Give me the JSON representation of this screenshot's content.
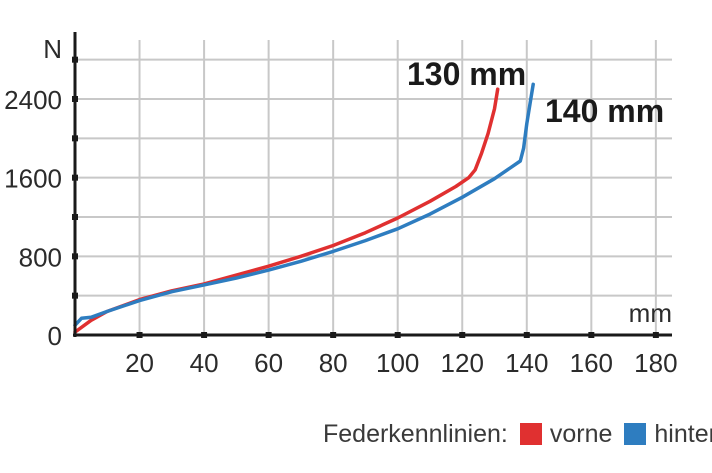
{
  "chart_data": {
    "type": "line",
    "xlabel": "mm",
    "ylabel": "N",
    "xlim": [
      0,
      185
    ],
    "ylim": [
      0,
      3000
    ],
    "x_ticks": [
      20,
      40,
      60,
      80,
      100,
      120,
      140,
      160,
      180
    ],
    "y_ticks": [
      0,
      800,
      1600,
      2400
    ],
    "grid": true,
    "legend": {
      "title": "Federkennlinien:",
      "placement": "bottom-right"
    },
    "series": [
      {
        "name": "vorne",
        "color": "#e03030",
        "annotation": "130 mm",
        "x": [
          0,
          5,
          10,
          20,
          30,
          40,
          50,
          60,
          70,
          80,
          90,
          100,
          110,
          118,
          122,
          124,
          126,
          128,
          130,
          131
        ],
        "y": [
          30,
          150,
          240,
          360,
          450,
          520,
          610,
          700,
          800,
          910,
          1040,
          1190,
          1360,
          1510,
          1600,
          1680,
          1850,
          2050,
          2300,
          2500
        ]
      },
      {
        "name": "hinten",
        "color": "#2e7dc0",
        "annotation": "140 mm",
        "x": [
          0,
          2,
          5,
          10,
          20,
          30,
          40,
          50,
          60,
          70,
          80,
          90,
          100,
          110,
          120,
          130,
          138,
          139,
          140,
          141,
          142
        ],
        "y": [
          100,
          170,
          180,
          240,
          350,
          440,
          510,
          580,
          660,
          750,
          850,
          960,
          1080,
          1230,
          1400,
          1590,
          1770,
          1900,
          2150,
          2350,
          2550
        ]
      }
    ]
  },
  "colors": {
    "axis": "#1a1a1a",
    "grid": "#c8c8c8",
    "tick_text": "#2b2b2b"
  }
}
